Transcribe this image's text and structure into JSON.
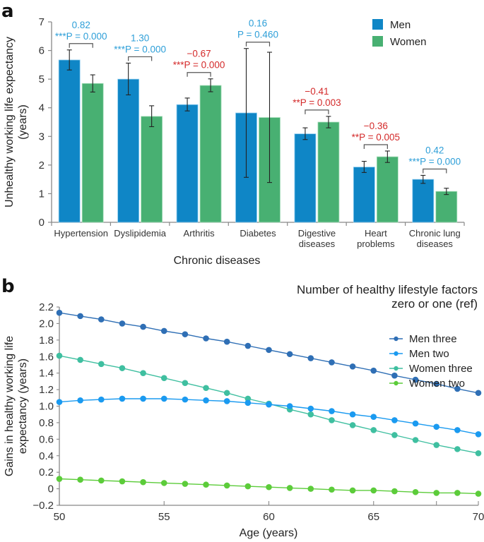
{
  "panels": {
    "a": {
      "label": "a"
    },
    "b": {
      "label": "b"
    }
  },
  "chart_data": [
    {
      "type": "bar",
      "panel": "a",
      "title": "",
      "xlabel": "Chronic diseases",
      "ylabel": "Unhealthy working life expectancy (years)",
      "ylabel_lines": [
        "Unhealthy working life expectancy",
        "(years)"
      ],
      "ylim": [
        0,
        7
      ],
      "yticks": [
        0,
        1,
        2,
        3,
        4,
        5,
        6,
        7
      ],
      "categories": [
        [
          "Hypertension"
        ],
        [
          "Dyslipidemia"
        ],
        [
          "Arthritis"
        ],
        [
          "Diabetes"
        ],
        [
          "Digestive",
          "diseases"
        ],
        [
          "Heart",
          "problems"
        ],
        [
          "Chronic lung",
          "diseases"
        ]
      ],
      "legend": {
        "placement": "top-right",
        "entries": [
          "Men",
          "Women"
        ]
      },
      "series": [
        {
          "name": "Men",
          "color": "#0f86c6",
          "values": [
            5.67,
            5.0,
            4.11,
            3.82,
            3.09,
            1.93,
            1.5
          ],
          "ci_low": [
            5.32,
            4.45,
            3.89,
            1.57,
            2.89,
            1.74,
            1.36
          ],
          "ci_high": [
            6.02,
            5.56,
            4.34,
            6.07,
            3.3,
            2.13,
            1.64
          ]
        },
        {
          "name": "Women",
          "color": "#48b072",
          "values": [
            4.85,
            3.7,
            4.78,
            3.66,
            3.5,
            2.29,
            1.08
          ],
          "ci_low": [
            4.55,
            3.34,
            4.56,
            1.39,
            3.3,
            2.09,
            0.97
          ],
          "ci_high": [
            5.15,
            4.07,
            5.01,
            5.94,
            3.7,
            2.49,
            1.19
          ]
        }
      ],
      "annotations": [
        {
          "diff": "0.82",
          "p": "***P = 0.000",
          "stars": "***",
          "p_text": "P = 0.000",
          "color": "#2e9fd8"
        },
        {
          "diff": "1.30",
          "p": "***P = 0.000",
          "stars": "***",
          "p_text": "P = 0.000",
          "color": "#2e9fd8"
        },
        {
          "diff": "−0.67",
          "p": "***P = 0.000",
          "stars": "***",
          "p_text": "P = 0.000",
          "color": "#d42a2a"
        },
        {
          "diff": "0.16",
          "p": "P = 0.460",
          "stars": "",
          "p_text": "P = 0.460",
          "color": "#2e9fd8"
        },
        {
          "diff": "−0.41",
          "p": "**P = 0.003",
          "stars": "**",
          "p_text": "P = 0.003",
          "color": "#d42a2a"
        },
        {
          "diff": "−0.36",
          "p": "**P = 0.005",
          "stars": "**",
          "p_text": "P = 0.005",
          "color": "#d42a2a"
        },
        {
          "diff": "0.42",
          "p": "***P = 0.000",
          "stars": "***",
          "p_text": "P = 0.000",
          "color": "#2e9fd8"
        }
      ]
    },
    {
      "type": "line",
      "panel": "b",
      "title": "",
      "xlabel": "Age (years)",
      "ylabel": "Gains in healthy working life expectancy (years)",
      "ylabel_lines": [
        "Gains in healthy working life",
        "expectancy (years)"
      ],
      "xlim": [
        50,
        70
      ],
      "ylim": [
        -0.2,
        2.2
      ],
      "xticks": [
        50,
        55,
        60,
        65,
        70
      ],
      "xtick_labels": [
        "50",
        "55",
        "60",
        "65",
        "70"
      ],
      "yticks": [
        -0.2,
        0,
        0.2,
        0.4,
        0.6,
        0.8,
        1.0,
        1.2,
        1.4,
        1.6,
        1.8,
        2.0,
        2.2
      ],
      "ytick_labels": [
        "−0.2",
        "0",
        "0.2",
        "0.4",
        "0.6",
        "0.8",
        "1.0",
        "1.2",
        "1.4",
        "1.6",
        "1.8",
        "2.0",
        "2.2"
      ],
      "legend": {
        "placement": "top-right",
        "title_lines": [
          "Number of healthy lifestyle factors",
          "zero or one (ref)"
        ],
        "entries": [
          "Men three",
          "Men two",
          "Women three",
          "Women two"
        ]
      },
      "x": [
        50,
        51,
        52,
        53,
        54,
        55,
        56,
        57,
        58,
        59,
        60,
        61,
        62,
        63,
        64,
        65,
        66,
        67,
        68,
        69,
        70
      ],
      "series": [
        {
          "name": "Men three",
          "color": "#2f6fb5",
          "values": [
            2.13,
            2.09,
            2.05,
            2.0,
            1.96,
            1.91,
            1.87,
            1.82,
            1.78,
            1.73,
            1.68,
            1.63,
            1.58,
            1.53,
            1.48,
            1.43,
            1.37,
            1.32,
            1.27,
            1.21,
            1.16
          ]
        },
        {
          "name": "Men two",
          "color": "#1a9af0",
          "values": [
            1.05,
            1.07,
            1.08,
            1.09,
            1.09,
            1.09,
            1.08,
            1.07,
            1.06,
            1.04,
            1.02,
            1.0,
            0.97,
            0.94,
            0.9,
            0.87,
            0.83,
            0.79,
            0.75,
            0.71,
            0.66
          ]
        },
        {
          "name": "Women three",
          "color": "#3fbfa0",
          "values": [
            1.61,
            1.56,
            1.51,
            1.46,
            1.4,
            1.34,
            1.28,
            1.22,
            1.16,
            1.09,
            1.03,
            0.96,
            0.9,
            0.83,
            0.77,
            0.71,
            0.65,
            0.59,
            0.53,
            0.48,
            0.43
          ]
        },
        {
          "name": "Women two",
          "color": "#5ccc3a",
          "values": [
            0.12,
            0.11,
            0.1,
            0.09,
            0.08,
            0.07,
            0.06,
            0.05,
            0.04,
            0.03,
            0.02,
            0.01,
            0.0,
            -0.01,
            -0.02,
            -0.02,
            -0.03,
            -0.04,
            -0.05,
            -0.05,
            -0.06
          ]
        }
      ]
    }
  ]
}
